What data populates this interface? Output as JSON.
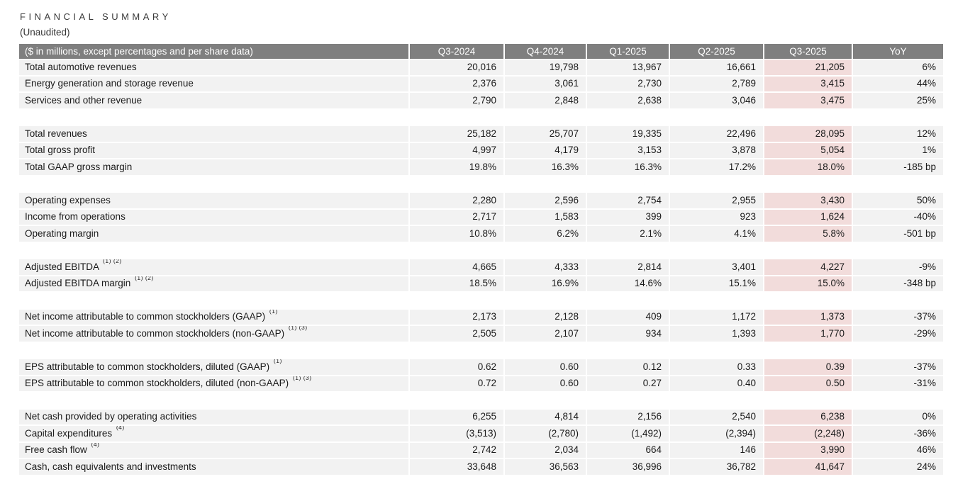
{
  "title": "FINANCIAL SUMMARY",
  "subtitle": "(Unaudited)",
  "colors": {
    "header_bg": "#7f7f7f",
    "header_text": "#ffffff",
    "row_bg": "#f2f2f2",
    "highlight_bg": "#f2dcdb",
    "body_text": "#1a1a1a"
  },
  "table": {
    "header": [
      "($ in millions, except percentages and per share data)",
      "Q3-2024",
      "Q4-2024",
      "Q1-2025",
      "Q2-2025",
      "Q3-2025",
      "YoY"
    ],
    "highlight_column": "Q3-2025",
    "highlight_column_index": 5,
    "sections": [
      {
        "rows": [
          {
            "label": "Total automotive revenues",
            "sup": "",
            "values": [
              "20,016",
              "19,798",
              "13,967",
              "16,661",
              "21,205",
              "6%"
            ]
          },
          {
            "label": "Energy generation and storage revenue",
            "sup": "",
            "values": [
              "2,376",
              "3,061",
              "2,730",
              "2,789",
              "3,415",
              "44%"
            ]
          },
          {
            "label": "Services and other revenue",
            "sup": "",
            "values": [
              "2,790",
              "2,848",
              "2,638",
              "3,046",
              "3,475",
              "25%"
            ]
          }
        ]
      },
      {
        "rows": [
          {
            "label": "Total revenues",
            "sup": "",
            "values": [
              "25,182",
              "25,707",
              "19,335",
              "22,496",
              "28,095",
              "12%"
            ]
          },
          {
            "label": "Total gross profit",
            "sup": "",
            "values": [
              "4,997",
              "4,179",
              "3,153",
              "3,878",
              "5,054",
              "1%"
            ]
          },
          {
            "label": "Total GAAP gross margin",
            "sup": "",
            "values": [
              "19.8%",
              "16.3%",
              "16.3%",
              "17.2%",
              "18.0%",
              "-185 bp"
            ]
          }
        ]
      },
      {
        "rows": [
          {
            "label": "Operating expenses",
            "sup": "",
            "values": [
              "2,280",
              "2,596",
              "2,754",
              "2,955",
              "3,430",
              "50%"
            ]
          },
          {
            "label": "Income from operations",
            "sup": "",
            "values": [
              "2,717",
              "1,583",
              "399",
              "923",
              "1,624",
              "-40%"
            ]
          },
          {
            "label": "Operating margin",
            "sup": "",
            "values": [
              "10.8%",
              "6.2%",
              "2.1%",
              "4.1%",
              "5.8%",
              "-501 bp"
            ]
          }
        ]
      },
      {
        "rows": [
          {
            "label": "Adjusted EBITDA",
            "sup": "(1) (2)",
            "values": [
              "4,665",
              "4,333",
              "2,814",
              "3,401",
              "4,227",
              "-9%"
            ]
          },
          {
            "label": "Adjusted EBITDA margin",
            "sup": "(1) (2)",
            "values": [
              "18.5%",
              "16.9%",
              "14.6%",
              "15.1%",
              "15.0%",
              "-348 bp"
            ]
          }
        ]
      },
      {
        "rows": [
          {
            "label": "Net income attributable to common stockholders (GAAP)",
            "sup": "(1)",
            "values": [
              "2,173",
              "2,128",
              "409",
              "1,172",
              "1,373",
              "-37%"
            ]
          },
          {
            "label": "Net income attributable to common stockholders (non-GAAP)",
            "sup": "(1) (3)",
            "values": [
              "2,505",
              "2,107",
              "934",
              "1,393",
              "1,770",
              "-29%"
            ]
          }
        ]
      },
      {
        "rows": [
          {
            "label": "EPS attributable to common stockholders, diluted (GAAP)",
            "sup": "(1)",
            "values": [
              "0.62",
              "0.60",
              "0.12",
              "0.33",
              "0.39",
              "-37%"
            ]
          },
          {
            "label": "EPS attributable to common stockholders, diluted (non-GAAP)",
            "sup": "(1) (3)",
            "values": [
              "0.72",
              "0.60",
              "0.27",
              "0.40",
              "0.50",
              "-31%"
            ]
          }
        ]
      },
      {
        "rows": [
          {
            "label": "Net cash provided by operating activities",
            "sup": "",
            "values": [
              "6,255",
              "4,814",
              "2,156",
              "2,540",
              "6,238",
              "0%"
            ]
          },
          {
            "label": "Capital expenditures",
            "sup": "(4)",
            "values": [
              "(3,513)",
              "(2,780)",
              "(1,492)",
              "(2,394)",
              "(2,248)",
              "-36%"
            ]
          },
          {
            "label": "Free cash flow",
            "sup": "(4)",
            "values": [
              "2,742",
              "2,034",
              "664",
              "146",
              "3,990",
              "46%"
            ]
          },
          {
            "label": "Cash, cash equivalents and investments",
            "sup": "",
            "values": [
              "33,648",
              "36,563",
              "36,996",
              "36,782",
              "41,647",
              "24%"
            ]
          }
        ]
      }
    ]
  }
}
